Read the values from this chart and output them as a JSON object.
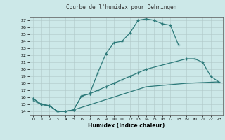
{
  "title": "Courbe de l'humidex pour Oehringen",
  "xlabel": "Humidex (Indice chaleur)",
  "bg_color": "#cce8e8",
  "line_color": "#2d7a7a",
  "grid_color": "#b0c8c8",
  "xlim": [
    -0.5,
    23.5
  ],
  "ylim": [
    13.5,
    27.5
  ],
  "xticks": [
    0,
    1,
    2,
    3,
    4,
    5,
    6,
    7,
    8,
    9,
    10,
    11,
    12,
    13,
    14,
    15,
    16,
    17,
    18,
    19,
    20,
    21,
    22,
    23
  ],
  "yticks": [
    14,
    15,
    16,
    17,
    18,
    19,
    20,
    21,
    22,
    23,
    24,
    25,
    26,
    27
  ],
  "line1_x": [
    0,
    1,
    2,
    3,
    4,
    5,
    6,
    7,
    8,
    9,
    10,
    11,
    12,
    13,
    14,
    15,
    16,
    17,
    18
  ],
  "line1_y": [
    15.8,
    15.0,
    14.8,
    14.0,
    14.0,
    14.2,
    16.2,
    16.5,
    19.5,
    22.2,
    23.8,
    24.0,
    25.2,
    27.0,
    27.2,
    27.0,
    26.5,
    26.3,
    23.5
  ],
  "line2_x": [
    0,
    1,
    2,
    3,
    4,
    5,
    6,
    7,
    8,
    9,
    10,
    11,
    12,
    13,
    14,
    19,
    20,
    21,
    22,
    23
  ],
  "line2_y": [
    15.8,
    15.0,
    14.8,
    14.0,
    14.0,
    14.2,
    16.2,
    16.5,
    17.0,
    17.5,
    18.0,
    18.5,
    19.0,
    19.5,
    20.0,
    21.5,
    21.5,
    21.0,
    19.0,
    18.2
  ],
  "line3_x": [
    0,
    1,
    2,
    3,
    4,
    5,
    14,
    19,
    23
  ],
  "line3_y": [
    15.5,
    15.0,
    14.8,
    14.0,
    14.0,
    14.2,
    17.5,
    18.0,
    18.2
  ]
}
